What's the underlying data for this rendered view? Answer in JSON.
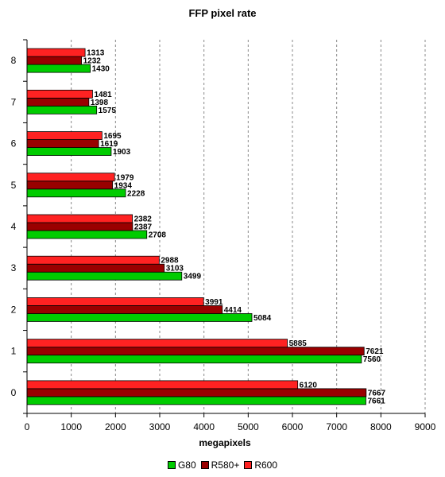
{
  "chart_data": {
    "type": "bar",
    "orientation": "horizontal",
    "title": "FFP pixel rate",
    "xlabel": "megapixels",
    "ylabel": "",
    "xlim": [
      0,
      9000
    ],
    "x_ticks": [
      0,
      1000,
      2000,
      3000,
      4000,
      5000,
      6000,
      7000,
      8000,
      9000
    ],
    "categories": [
      "0",
      "1",
      "2",
      "3",
      "4",
      "5",
      "6",
      "7",
      "8"
    ],
    "grid": "vertical-dashed",
    "legend_position": "bottom",
    "series": [
      {
        "name": "G80",
        "color": "#00cc00",
        "values": [
          7661,
          7560,
          5084,
          3499,
          2708,
          2228,
          1903,
          1575,
          1430
        ]
      },
      {
        "name": "R580+",
        "color": "#990000",
        "values": [
          7667,
          7621,
          4414,
          3103,
          2387,
          1934,
          1619,
          1398,
          1232
        ]
      },
      {
        "name": "R600",
        "color": "#ff2222",
        "values": [
          6120,
          5885,
          3991,
          2988,
          2382,
          1979,
          1695,
          1481,
          1313
        ]
      }
    ]
  }
}
